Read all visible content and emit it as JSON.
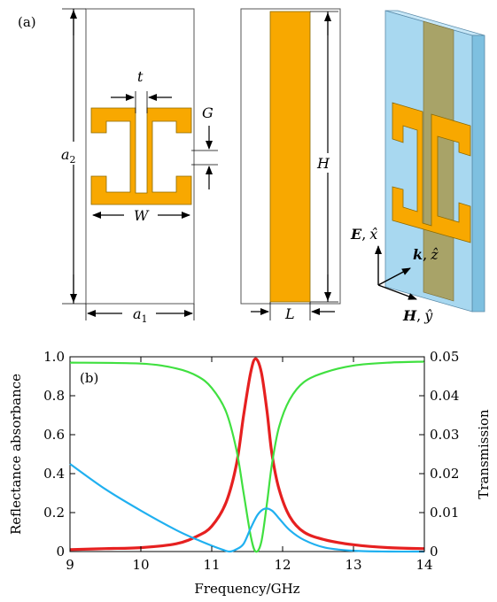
{
  "panel_a": {
    "label": "(a)",
    "dims": {
      "t": "t",
      "G": "G",
      "a2": "a",
      "a2_sub": "2",
      "W": "W",
      "a1": "a",
      "a1_sub": "1",
      "H": "H",
      "L": "L"
    },
    "axes": {
      "E": "E",
      "E_hat": "x̂",
      "k": "k",
      "k_hat": "ẑ",
      "H": "H",
      "H_hat": "ŷ",
      "comma": ","
    },
    "colors": {
      "metal": "#F8A800",
      "substrate": "#A8D8F0",
      "outline": "#555555"
    }
  },
  "panel_b": {
    "label": "(b)"
  },
  "chart_data": {
    "type": "line",
    "xlabel": "Frequency/GHz",
    "ylabel": "Reflectance absorbance",
    "y2label": "Transmission",
    "xlim": [
      9,
      14
    ],
    "ylim": [
      0,
      1.0
    ],
    "y2lim": [
      0,
      0.05
    ],
    "x_ticks": [
      "9",
      "10",
      "11",
      "12",
      "13",
      "14"
    ],
    "y_ticks": [
      "0",
      "0.2",
      "0.4",
      "0.6",
      "0.8",
      "1.0"
    ],
    "y2_ticks": [
      "0",
      "0.01",
      "0.02",
      "0.03",
      "0.04",
      "0.05"
    ],
    "series": [
      {
        "color": "#E62020",
        "axis": "left",
        "x": [
          9.0,
          9.5,
          10.0,
          10.5,
          10.8,
          11.0,
          11.2,
          11.35,
          11.45,
          11.55,
          11.62,
          11.7,
          11.78,
          11.85,
          11.95,
          12.1,
          12.3,
          12.6,
          13.0,
          13.5,
          14.0
        ],
        "y": [
          0.01,
          0.015,
          0.02,
          0.04,
          0.08,
          0.13,
          0.25,
          0.45,
          0.7,
          0.92,
          0.99,
          0.92,
          0.72,
          0.5,
          0.32,
          0.18,
          0.1,
          0.06,
          0.035,
          0.02,
          0.015
        ]
      },
      {
        "color": "#40E040",
        "axis": "left",
        "x": [
          9.0,
          10.0,
          10.5,
          10.8,
          11.0,
          11.2,
          11.35,
          11.45,
          11.55,
          11.62,
          11.7,
          11.78,
          11.85,
          11.95,
          12.1,
          12.3,
          12.6,
          13.0,
          13.5,
          14.0
        ],
        "y": [
          0.97,
          0.965,
          0.94,
          0.9,
          0.84,
          0.72,
          0.52,
          0.3,
          0.08,
          0.0,
          0.05,
          0.25,
          0.45,
          0.64,
          0.78,
          0.87,
          0.92,
          0.955,
          0.97,
          0.975
        ]
      },
      {
        "color": "#20B0F0",
        "axis": "right",
        "x": [
          9.0,
          9.5,
          10.0,
          10.5,
          10.8,
          11.0,
          11.15,
          11.25,
          11.35,
          11.45,
          11.55,
          11.65,
          11.75,
          11.85,
          11.95,
          12.1,
          12.3,
          12.6,
          13.0,
          13.5,
          14.0
        ],
        "y": [
          0.0225,
          0.016,
          0.0105,
          0.0055,
          0.003,
          0.0015,
          0.0005,
          0.0,
          0.0006,
          0.002,
          0.006,
          0.0095,
          0.011,
          0.0105,
          0.0085,
          0.0055,
          0.003,
          0.001,
          0.0002,
          0.0,
          0.0
        ]
      }
    ]
  }
}
